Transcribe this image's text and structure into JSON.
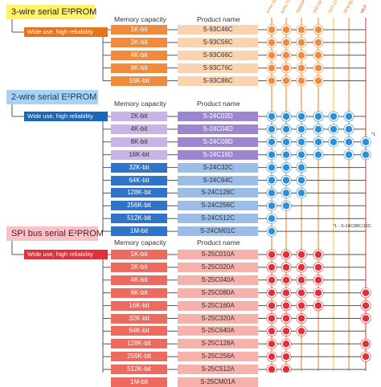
{
  "headers": {
    "memory_capacity": "Memory capacity",
    "product_name": "Product name"
  },
  "packages": [
    {
      "name": "8-Pin SOP",
      "color": "#e87d1e"
    },
    {
      "name": "8-Pin TSSOP",
      "color": "#e87d1e"
    },
    {
      "name": "TMSOP-8",
      "color": "#e87d1e"
    },
    {
      "name": "SNT-8A",
      "color": "#e87d1e"
    },
    {
      "name": "SOT-23-5",
      "color": "#f2c12e"
    },
    {
      "name": "DFN-8(2030)",
      "color": "#e87d1e"
    },
    {
      "name": "WLP",
      "color": "#d8342c"
    }
  ],
  "families": [
    {
      "title": "3-wire serial E²PROM",
      "use": "Wide use, high reliability",
      "dot_color": "#f08a3c",
      "rows": [
        {
          "capacity": "1K-bit",
          "product": "S-93C46C",
          "pkgs": [
            1,
            1,
            1,
            1,
            0,
            0,
            0
          ]
        },
        {
          "capacity": "2K-bit",
          "product": "S-93C56C",
          "pkgs": [
            1,
            1,
            1,
            1,
            0,
            0,
            0
          ]
        },
        {
          "capacity": "4K-bit",
          "product": "S-93C66C",
          "pkgs": [
            1,
            1,
            1,
            1,
            0,
            0,
            0
          ]
        },
        {
          "capacity": "8K-bit",
          "product": "S-93C76C",
          "pkgs": [
            1,
            1,
            1,
            1,
            0,
            0,
            0
          ]
        },
        {
          "capacity": "16K-bit",
          "product": "S-93C86C",
          "pkgs": [
            1,
            1,
            1,
            1,
            0,
            0,
            0
          ]
        }
      ]
    },
    {
      "title": "2-wire serial E²PROM",
      "use": "Wide use, high reliability",
      "dot_color": "#2f8fd6",
      "rows": [
        {
          "capacity": "2K-bit",
          "product": "S-24C02D",
          "pkgs": [
            1,
            1,
            1,
            1,
            1,
            1,
            0
          ]
        },
        {
          "capacity": "4K-bit",
          "product": "S-24C04D",
          "pkgs": [
            1,
            1,
            1,
            1,
            1,
            1,
            0
          ]
        },
        {
          "capacity": "8K-bit",
          "product": "S-24C08D",
          "pkgs": [
            1,
            1,
            1,
            1,
            1,
            1,
            1
          ]
        },
        {
          "capacity": "16K-bit",
          "product": "S-24C16D",
          "pkgs": [
            1,
            1,
            1,
            1,
            0,
            1,
            1
          ]
        },
        {
          "capacity": "32K-bit",
          "product": "S-24C32C",
          "pkgs": [
            1,
            1,
            1,
            0,
            0,
            0,
            0
          ]
        },
        {
          "capacity": "64K-bit",
          "product": "S-24C64C",
          "pkgs": [
            1,
            1,
            1,
            0,
            0,
            0,
            0
          ]
        },
        {
          "capacity": "128K-bit",
          "product": "S-24C128C",
          "pkgs": [
            1,
            1,
            1,
            0,
            0,
            0,
            0
          ]
        },
        {
          "capacity": "256K-bit",
          "product": "S-24C256C",
          "pkgs": [
            1,
            1,
            0,
            0,
            0,
            0,
            0
          ]
        },
        {
          "capacity": "512K-bit",
          "product": "S-24C512C",
          "pkgs": [
            1,
            0,
            0,
            0,
            0,
            0,
            0
          ]
        },
        {
          "capacity": "1M-bit",
          "product": "S-24CM01C",
          "pkgs": [
            1,
            0,
            0,
            0,
            0,
            0,
            0
          ]
        }
      ]
    },
    {
      "title": "SPI bus serial E²PROM",
      "use": "Wide use, high reliability",
      "dot_color": "#e0303a",
      "rows": [
        {
          "capacity": "1K-bit",
          "product": "S-25C010A",
          "pkgs": [
            1,
            1,
            1,
            1,
            0,
            0,
            0
          ]
        },
        {
          "capacity": "2K-bit",
          "product": "S-25C020A",
          "pkgs": [
            1,
            1,
            1,
            1,
            0,
            0,
            0
          ]
        },
        {
          "capacity": "4K-bit",
          "product": "S-25C040A",
          "pkgs": [
            1,
            1,
            1,
            1,
            0,
            0,
            0
          ]
        },
        {
          "capacity": "8K-bit",
          "product": "S-25C080A",
          "pkgs": [
            1,
            1,
            1,
            1,
            0,
            0,
            1
          ]
        },
        {
          "capacity": "16K-bit",
          "product": "S-25C160A",
          "pkgs": [
            1,
            1,
            1,
            1,
            0,
            0,
            1
          ]
        },
        {
          "capacity": "32K-bit",
          "product": "S-25C320A",
          "pkgs": [
            1,
            1,
            1,
            0,
            0,
            0,
            1
          ]
        },
        {
          "capacity": "64K-bit",
          "product": "S-25C640A",
          "pkgs": [
            1,
            1,
            1,
            0,
            0,
            0,
            0
          ]
        },
        {
          "capacity": "128K-bit",
          "product": "S-25C128A",
          "pkgs": [
            1,
            1,
            0,
            0,
            0,
            0,
            1
          ]
        },
        {
          "capacity": "256K-bit",
          "product": "S-25C256A",
          "pkgs": [
            1,
            1,
            0,
            0,
            0,
            0,
            1
          ]
        },
        {
          "capacity": "512K-bit",
          "product": "S-25C512A",
          "pkgs": [
            1,
            1,
            0,
            0,
            0,
            0,
            0
          ]
        },
        {
          "capacity": "1M-bit",
          "product": "S-25CM01A",
          "pkgs": [
            1,
            0,
            0,
            0,
            0,
            0,
            1
          ]
        }
      ]
    }
  ],
  "notes": {
    "mark": "*1",
    "footnote": "*1 : S-24C08C/16C"
  }
}
